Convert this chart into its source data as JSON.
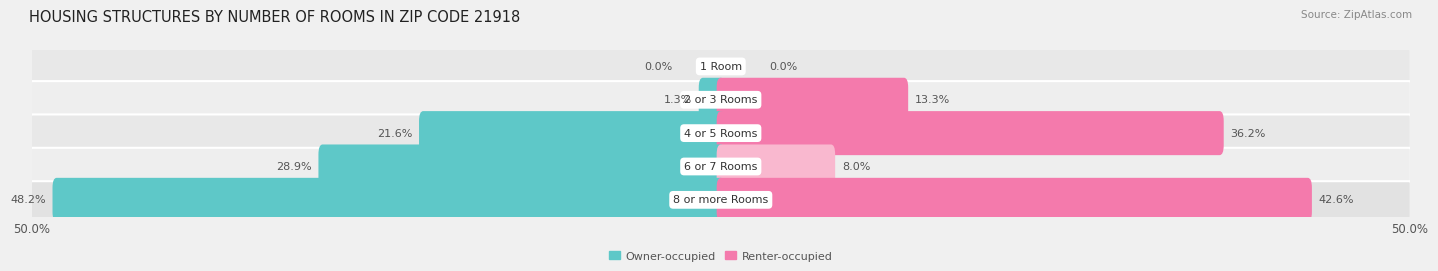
{
  "title": "HOUSING STRUCTURES BY NUMBER OF ROOMS IN ZIP CODE 21918",
  "source": "Source: ZipAtlas.com",
  "categories": [
    "1 Room",
    "2 or 3 Rooms",
    "4 or 5 Rooms",
    "6 or 7 Rooms",
    "8 or more Rooms"
  ],
  "owner_values": [
    0.0,
    1.3,
    21.6,
    28.9,
    48.2
  ],
  "renter_values": [
    0.0,
    13.3,
    36.2,
    8.0,
    42.6
  ],
  "max_val": 50.0,
  "owner_color": "#5ec8c8",
  "renter_color": "#f47aac",
  "renter_color_light": "#f9b8cf",
  "row_colors": [
    "#e8e8e8",
    "#eeeeee",
    "#e8e8e8",
    "#eeeeee",
    "#e2e2e2"
  ],
  "title_fontsize": 10.5,
  "label_fontsize": 8.0,
  "tick_fontsize": 8.5,
  "source_fontsize": 7.5,
  "bar_height": 0.72
}
